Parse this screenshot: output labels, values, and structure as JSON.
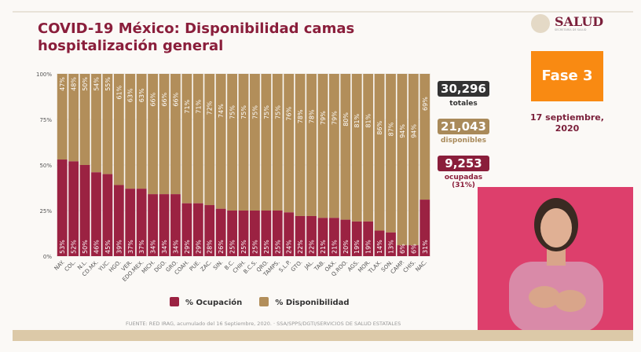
{
  "title": "COVID-19 México: Disponibilidad camas hospitalización general",
  "logo": {
    "name": "SALUD",
    "subtitle": "SECRETARÍA DE SALUD"
  },
  "phase": "Fase 3",
  "date": "17 septiembre, 2020",
  "stats": {
    "total": {
      "value": "30,296",
      "label": "totales",
      "color": "#333333"
    },
    "available": {
      "value": "21,043",
      "label": "disponibles",
      "color": "#a98a5a"
    },
    "occupied": {
      "value": "9,253",
      "label": "ocupadas (31%)",
      "color": "#8a1e3b"
    }
  },
  "source": "FUENTE: RED IRAG, acumulado del 16 Septiembre, 2020. · SSA/SPPS/DGTI/SERVICIOS DE SALUD ESTATALES",
  "chart_data": {
    "type": "bar",
    "stacked": true,
    "title": "COVID-19 México: Disponibilidad camas hospitalización general",
    "categories": [
      "NAY.",
      "COL.",
      "N.L.",
      "CD.MX.",
      "YUC.",
      "HGO.",
      "VER.",
      "EDO.MEX.",
      "MICH.",
      "DGO.",
      "GRO.",
      "COAH.",
      "PUE.",
      "ZAC.",
      "SIN.",
      "B.C.",
      "CHIH.",
      "B.C.S.",
      "QRO.",
      "TAMPS.",
      "S.L.P.",
      "GTO.",
      "JAL.",
      "TAB.",
      "OAX.",
      "Q.ROO.",
      "AGS.",
      "MOR.",
      "TLAX.",
      "SON.",
      "CAMP.",
      "CHIS.",
      "NAC."
    ],
    "series": [
      {
        "name": "% Ocupación",
        "color": "#9b2242",
        "values": [
          53,
          52,
          50,
          46,
          45,
          39,
          37,
          37,
          34,
          34,
          34,
          29,
          29,
          28,
          26,
          25,
          25,
          25,
          25,
          25,
          24,
          22,
          22,
          21,
          21,
          20,
          19,
          19,
          14,
          13,
          6,
          6,
          31
        ]
      },
      {
        "name": "% Disponibilidad",
        "color": "#b28e5a",
        "values": [
          47,
          48,
          50,
          54,
          55,
          61,
          63,
          63,
          66,
          66,
          66,
          71,
          71,
          72,
          74,
          75,
          75,
          75,
          75,
          75,
          76,
          78,
          78,
          79,
          79,
          80,
          81,
          81,
          86,
          87,
          94,
          94,
          69
        ]
      }
    ],
    "yticks": [
      "0%",
      "25%",
      "50%",
      "75%",
      "100%"
    ],
    "ylim": [
      0,
      100
    ],
    "grid": true,
    "legend": "bottom"
  }
}
